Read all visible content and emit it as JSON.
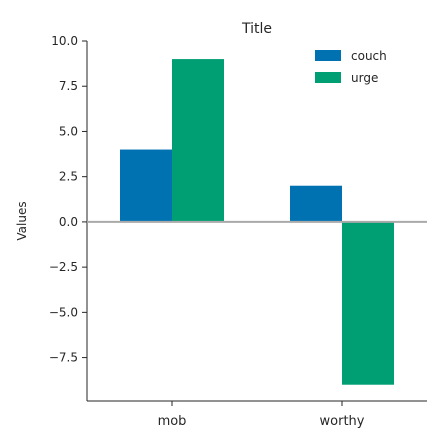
{
  "chart_data": {
    "type": "bar",
    "title": "Title",
    "xlabel": "",
    "ylabel": "Values",
    "categories": [
      "mob",
      "worthy"
    ],
    "series": [
      {
        "name": "couch",
        "color": "#0072b2",
        "values": [
          4,
          2
        ]
      },
      {
        "name": "urge",
        "color": "#009e73",
        "values": [
          9,
          -9
        ]
      }
    ],
    "ylim": [
      -9.9,
      10
    ],
    "yticks": [
      10.0,
      7.5,
      5.0,
      2.5,
      0.0,
      -2.5,
      -5.0,
      -7.5
    ],
    "ytick_labels": [
      "10.0",
      "7.5",
      "5.0",
      "2.5",
      "0.0",
      "−2.5",
      "−5.0",
      "−7.5"
    ],
    "grid": false,
    "legend_position": "top-right"
  }
}
